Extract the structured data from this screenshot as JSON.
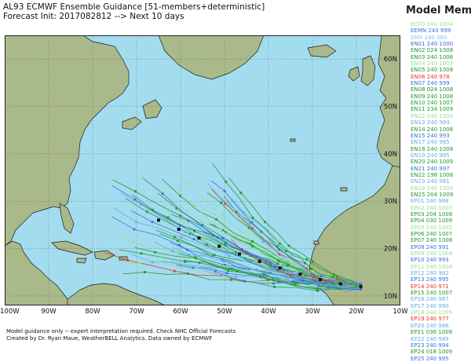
{
  "header": {
    "line1": "AL93 ECMWF Ensemble Guidance [51-members+deterministic]",
    "line2": "Forecast Init: 2017082812 --> Next 10 days"
  },
  "legend": {
    "title": "Model Mems",
    "items": [
      {
        "label": "EC00 240 1004",
        "color": "#9adf8c"
      },
      {
        "label": "EEMN 240 999",
        "color": "#3d6fe0"
      },
      {
        "label": "EMX 240 984",
        "color": "#84c8ee"
      },
      {
        "label": "EN01 240 1000",
        "color": "#3a6fdc"
      },
      {
        "label": "EN02 024 1008",
        "color": "#1e9a2a"
      },
      {
        "label": "EN03 240 1006",
        "color": "#1e9a2a"
      },
      {
        "label": "EN04 240 1003",
        "color": "#9adf8c"
      },
      {
        "label": "EN05 240 1008",
        "color": "#1e9a2a"
      },
      {
        "label": "EN06 240 978",
        "color": "#e8372a"
      },
      {
        "label": "EN07 240 999",
        "color": "#3a6fdc"
      },
      {
        "label": "EN08 024 1008",
        "color": "#1e9a2a"
      },
      {
        "label": "EN09 240 1008",
        "color": "#1e9a2a"
      },
      {
        "label": "EN10 240 1007",
        "color": "#1e9a2a"
      },
      {
        "label": "EN11 234 1009",
        "color": "#1e9a2a"
      },
      {
        "label": "EN12 240 1005",
        "color": "#9adf8c"
      },
      {
        "label": "EN13 240 984",
        "color": "#6aaae6"
      },
      {
        "label": "EN14 240 1006",
        "color": "#1e9a2a"
      },
      {
        "label": "EN15 240 993",
        "color": "#3a6fdc"
      },
      {
        "label": "EN17 240 985",
        "color": "#6aaae6"
      },
      {
        "label": "EN18 240 1008",
        "color": "#1e9a2a"
      },
      {
        "label": "EN19 240 985",
        "color": "#6aaae6"
      },
      {
        "label": "EN20 240 1009",
        "color": "#1e9a2a"
      },
      {
        "label": "EN21 240 997",
        "color": "#3a6fdc"
      },
      {
        "label": "EN22 198 1008",
        "color": "#1e9a2a"
      },
      {
        "label": "EN23 240 981",
        "color": "#6aaae6"
      },
      {
        "label": "EN24 240 1005",
        "color": "#9adf8c"
      },
      {
        "label": "EN25 204 1009",
        "color": "#1e9a2a"
      },
      {
        "label": "EP01 240 988",
        "color": "#6aaae6"
      },
      {
        "label": "EP02 240 1005",
        "color": "#9adf8c"
      },
      {
        "label": "EP03 204 1008",
        "color": "#1e9a2a"
      },
      {
        "label": "EP04 030 1009",
        "color": "#1e9a2a"
      },
      {
        "label": "EP05 240 1002",
        "color": "#9adf8c"
      },
      {
        "label": "EP06 240 1007",
        "color": "#1e9a2a"
      },
      {
        "label": "EP07 240 1008",
        "color": "#1e9a2a"
      },
      {
        "label": "EP08 240 991",
        "color": "#3a6fdc"
      },
      {
        "label": "EP09 240 1004",
        "color": "#9adf8c"
      },
      {
        "label": "EP10 240 993",
        "color": "#3a6fdc"
      },
      {
        "label": "EP11 240 1004",
        "color": "#9adf8c"
      },
      {
        "label": "EP12 240 982",
        "color": "#6aaae6"
      },
      {
        "label": "EP13 240 995",
        "color": "#3a6fdc"
      },
      {
        "label": "EP14 240 971",
        "color": "#e8372a"
      },
      {
        "label": "EP15 240 1007",
        "color": "#1e9a2a"
      },
      {
        "label": "EP16 240 987",
        "color": "#6aaae6"
      },
      {
        "label": "EP17 240 990",
        "color": "#6aaae6"
      },
      {
        "label": "EP18 240 1005",
        "color": "#9adf8c"
      },
      {
        "label": "EP19 240 977",
        "color": "#e8372a"
      },
      {
        "label": "EP20 240 986",
        "color": "#6aaae6"
      },
      {
        "label": "EP21 036 1008",
        "color": "#1e9a2a"
      },
      {
        "label": "EP22 240 989",
        "color": "#6aaae6"
      },
      {
        "label": "EP23 240 994",
        "color": "#3a6fdc"
      },
      {
        "label": "EP24 018 1009",
        "color": "#1e9a2a"
      },
      {
        "label": "EP25 240 995",
        "color": "#3a6fdc"
      }
    ]
  },
  "map": {
    "ocean_color": "#a3dcef",
    "land_color": "#aab98a",
    "lat_labels": [
      "10N",
      "20N",
      "30N",
      "40N",
      "50N",
      "60N"
    ],
    "lon_labels": [
      "100W",
      "90W",
      "80W",
      "70W",
      "60W",
      "50W",
      "40W",
      "30W",
      "20W",
      "10W"
    ],
    "lon_range": [
      -100,
      -10
    ],
    "lat_range": [
      8,
      65
    ]
  },
  "footer": {
    "line1": "Model guidance only -- expert interpretation required.  Check NHC Official Forecasts",
    "line2": "Created by Dr. Ryan Maue, WeatherBELL Analytics.  Data owned by ECMWF"
  }
}
